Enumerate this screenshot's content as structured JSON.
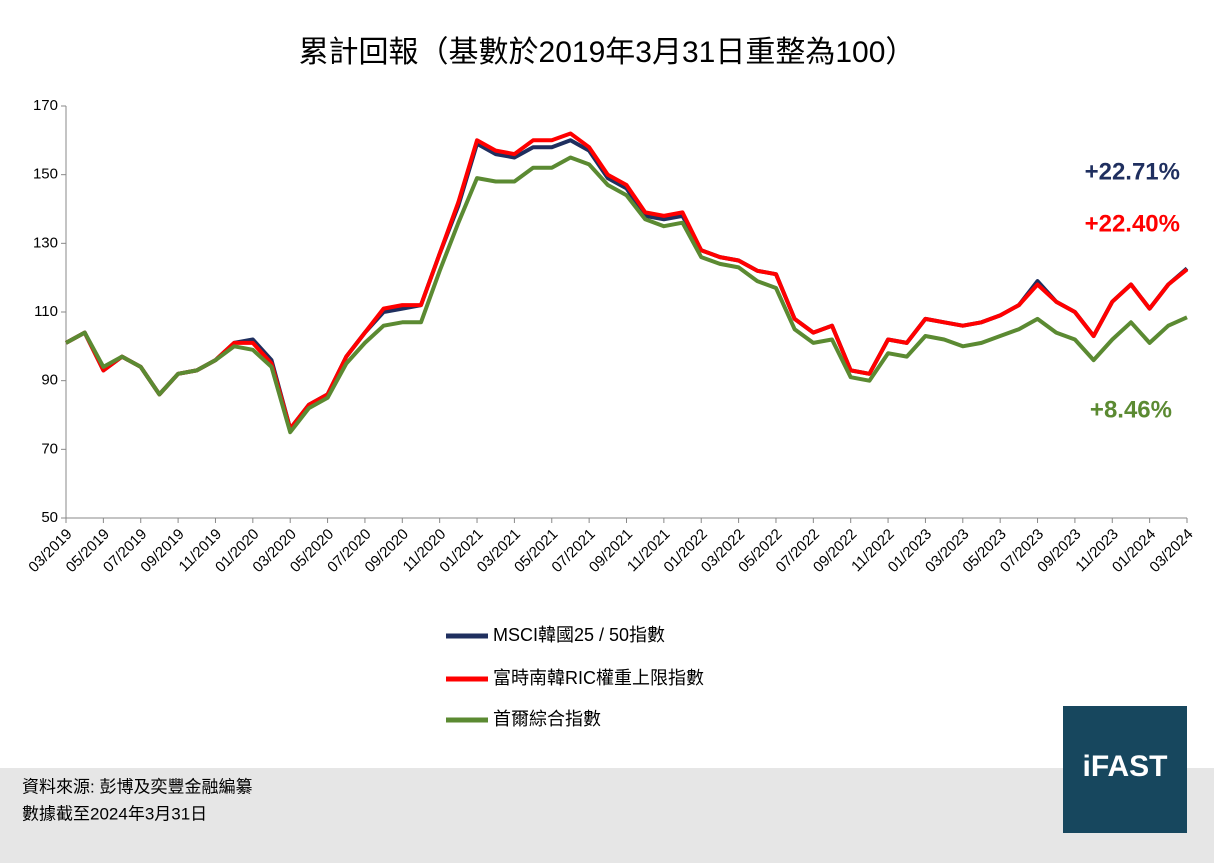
{
  "chart_data": {
    "type": "line",
    "title": "累計回報（基數於2019年3月31日重整為100）",
    "categories": [
      "03/2019",
      null,
      "05/2019",
      null,
      "07/2019",
      null,
      "09/2019",
      null,
      "11/2019",
      null,
      "01/2020",
      null,
      "03/2020",
      null,
      "05/2020",
      null,
      "07/2020",
      null,
      "09/2020",
      null,
      "11/2020",
      null,
      "01/2021",
      null,
      "03/2021",
      null,
      "05/2021",
      null,
      "07/2021",
      null,
      "09/2021",
      null,
      "11/2021",
      null,
      "01/2022",
      null,
      "03/2022",
      null,
      "05/2022",
      null,
      "07/2022",
      null,
      "09/2022",
      null,
      "11/2022",
      null,
      "01/2023",
      null,
      "03/2023",
      null,
      "05/2023",
      null,
      "07/2023",
      null,
      "09/2023",
      null,
      "11/2023",
      null,
      "01/2024",
      null,
      "03/2024"
    ],
    "series": [
      {
        "name": "MSCI韓國25 / 50指數",
        "color": "#1f2f5f",
        "values": [
          101,
          104,
          93,
          97,
          94,
          86,
          92,
          93,
          96,
          101,
          102,
          96,
          76,
          83,
          86,
          97,
          104,
          110,
          111,
          112,
          127,
          141,
          159,
          156,
          155,
          158,
          158,
          160,
          157,
          149,
          146,
          138,
          137,
          138,
          128,
          126,
          125,
          122,
          121,
          108,
          104,
          106,
          93,
          92,
          102,
          101,
          108,
          107,
          106,
          107,
          109,
          112,
          119,
          113,
          110,
          103,
          113,
          118,
          111,
          118,
          122.71
        ]
      },
      {
        "name": "富時南韓RIC權重上限指數",
        "color": "#ff0000",
        "values": [
          101,
          104,
          93,
          97,
          94,
          86,
          92,
          93,
          96,
          101,
          101,
          95,
          76,
          83,
          86,
          97,
          104,
          111,
          112,
          112,
          127,
          142,
          160,
          157,
          156,
          160,
          160,
          162,
          158,
          150,
          147,
          139,
          138,
          139,
          128,
          126,
          125,
          122,
          121,
          108,
          104,
          106,
          93,
          92,
          102,
          101,
          108,
          107,
          106,
          107,
          109,
          112,
          118,
          113,
          110,
          103,
          113,
          118,
          111,
          118,
          122.4
        ]
      },
      {
        "name": "首爾綜合指數",
        "color": "#5b8a32",
        "values": [
          101,
          104,
          94,
          97,
          94,
          86,
          92,
          93,
          96,
          100,
          99,
          94,
          75,
          82,
          85,
          95,
          101,
          106,
          107,
          107,
          122,
          136,
          149,
          148,
          148,
          152,
          152,
          155,
          153,
          147,
          144,
          137,
          135,
          136,
          126,
          124,
          123,
          119,
          117,
          105,
          101,
          102,
          91,
          90,
          98,
          97,
          103,
          102,
          100,
          101,
          103,
          105,
          108,
          104,
          102,
          96,
          102,
          107,
          101,
          106,
          108.46
        ]
      }
    ],
    "ylim": [
      50,
      170
    ],
    "yticks": [
      50,
      70,
      90,
      110,
      130,
      150,
      170
    ],
    "annotations": [
      {
        "text": "+22.71%",
        "color": "#1f2f5f"
      },
      {
        "text": "+22.40%",
        "color": "#ff0000"
      },
      {
        "text": "+8.46%",
        "color": "#5b8a32"
      }
    ],
    "source": "資料來源: 彭博及奕豐金融編纂",
    "note": "數據截至2024年3月31日",
    "logo": "iFAST"
  }
}
